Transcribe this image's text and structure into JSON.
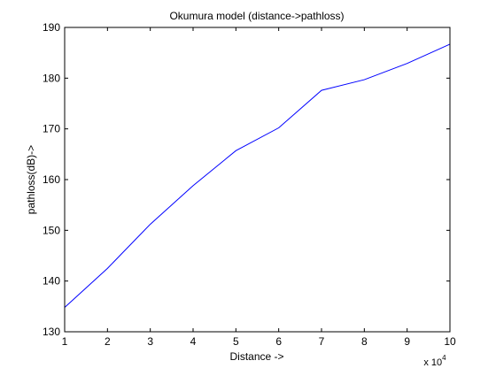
{
  "chart_data": {
    "type": "line",
    "title": "Okumura model (distance->pathloss)",
    "xlabel": "Distance ->",
    "ylabel": "pathloss(dB)->",
    "x_multiplier_label": "x 10",
    "x_multiplier_exponent": "4",
    "xlim": [
      1,
      10
    ],
    "ylim": [
      130,
      190
    ],
    "xticks": [
      1,
      2,
      3,
      4,
      5,
      6,
      7,
      8,
      9,
      10
    ],
    "yticks": [
      130,
      140,
      150,
      160,
      170,
      180,
      190
    ],
    "grid": false,
    "legend": "none",
    "series": [
      {
        "color": "#0000ff",
        "x": [
          1,
          2,
          3,
          4,
          5,
          6,
          7,
          8,
          9,
          10
        ],
        "y": [
          134.8,
          142.5,
          151.2,
          158.8,
          165.7,
          170.2,
          177.6,
          179.7,
          182.9,
          186.7
        ]
      }
    ]
  }
}
